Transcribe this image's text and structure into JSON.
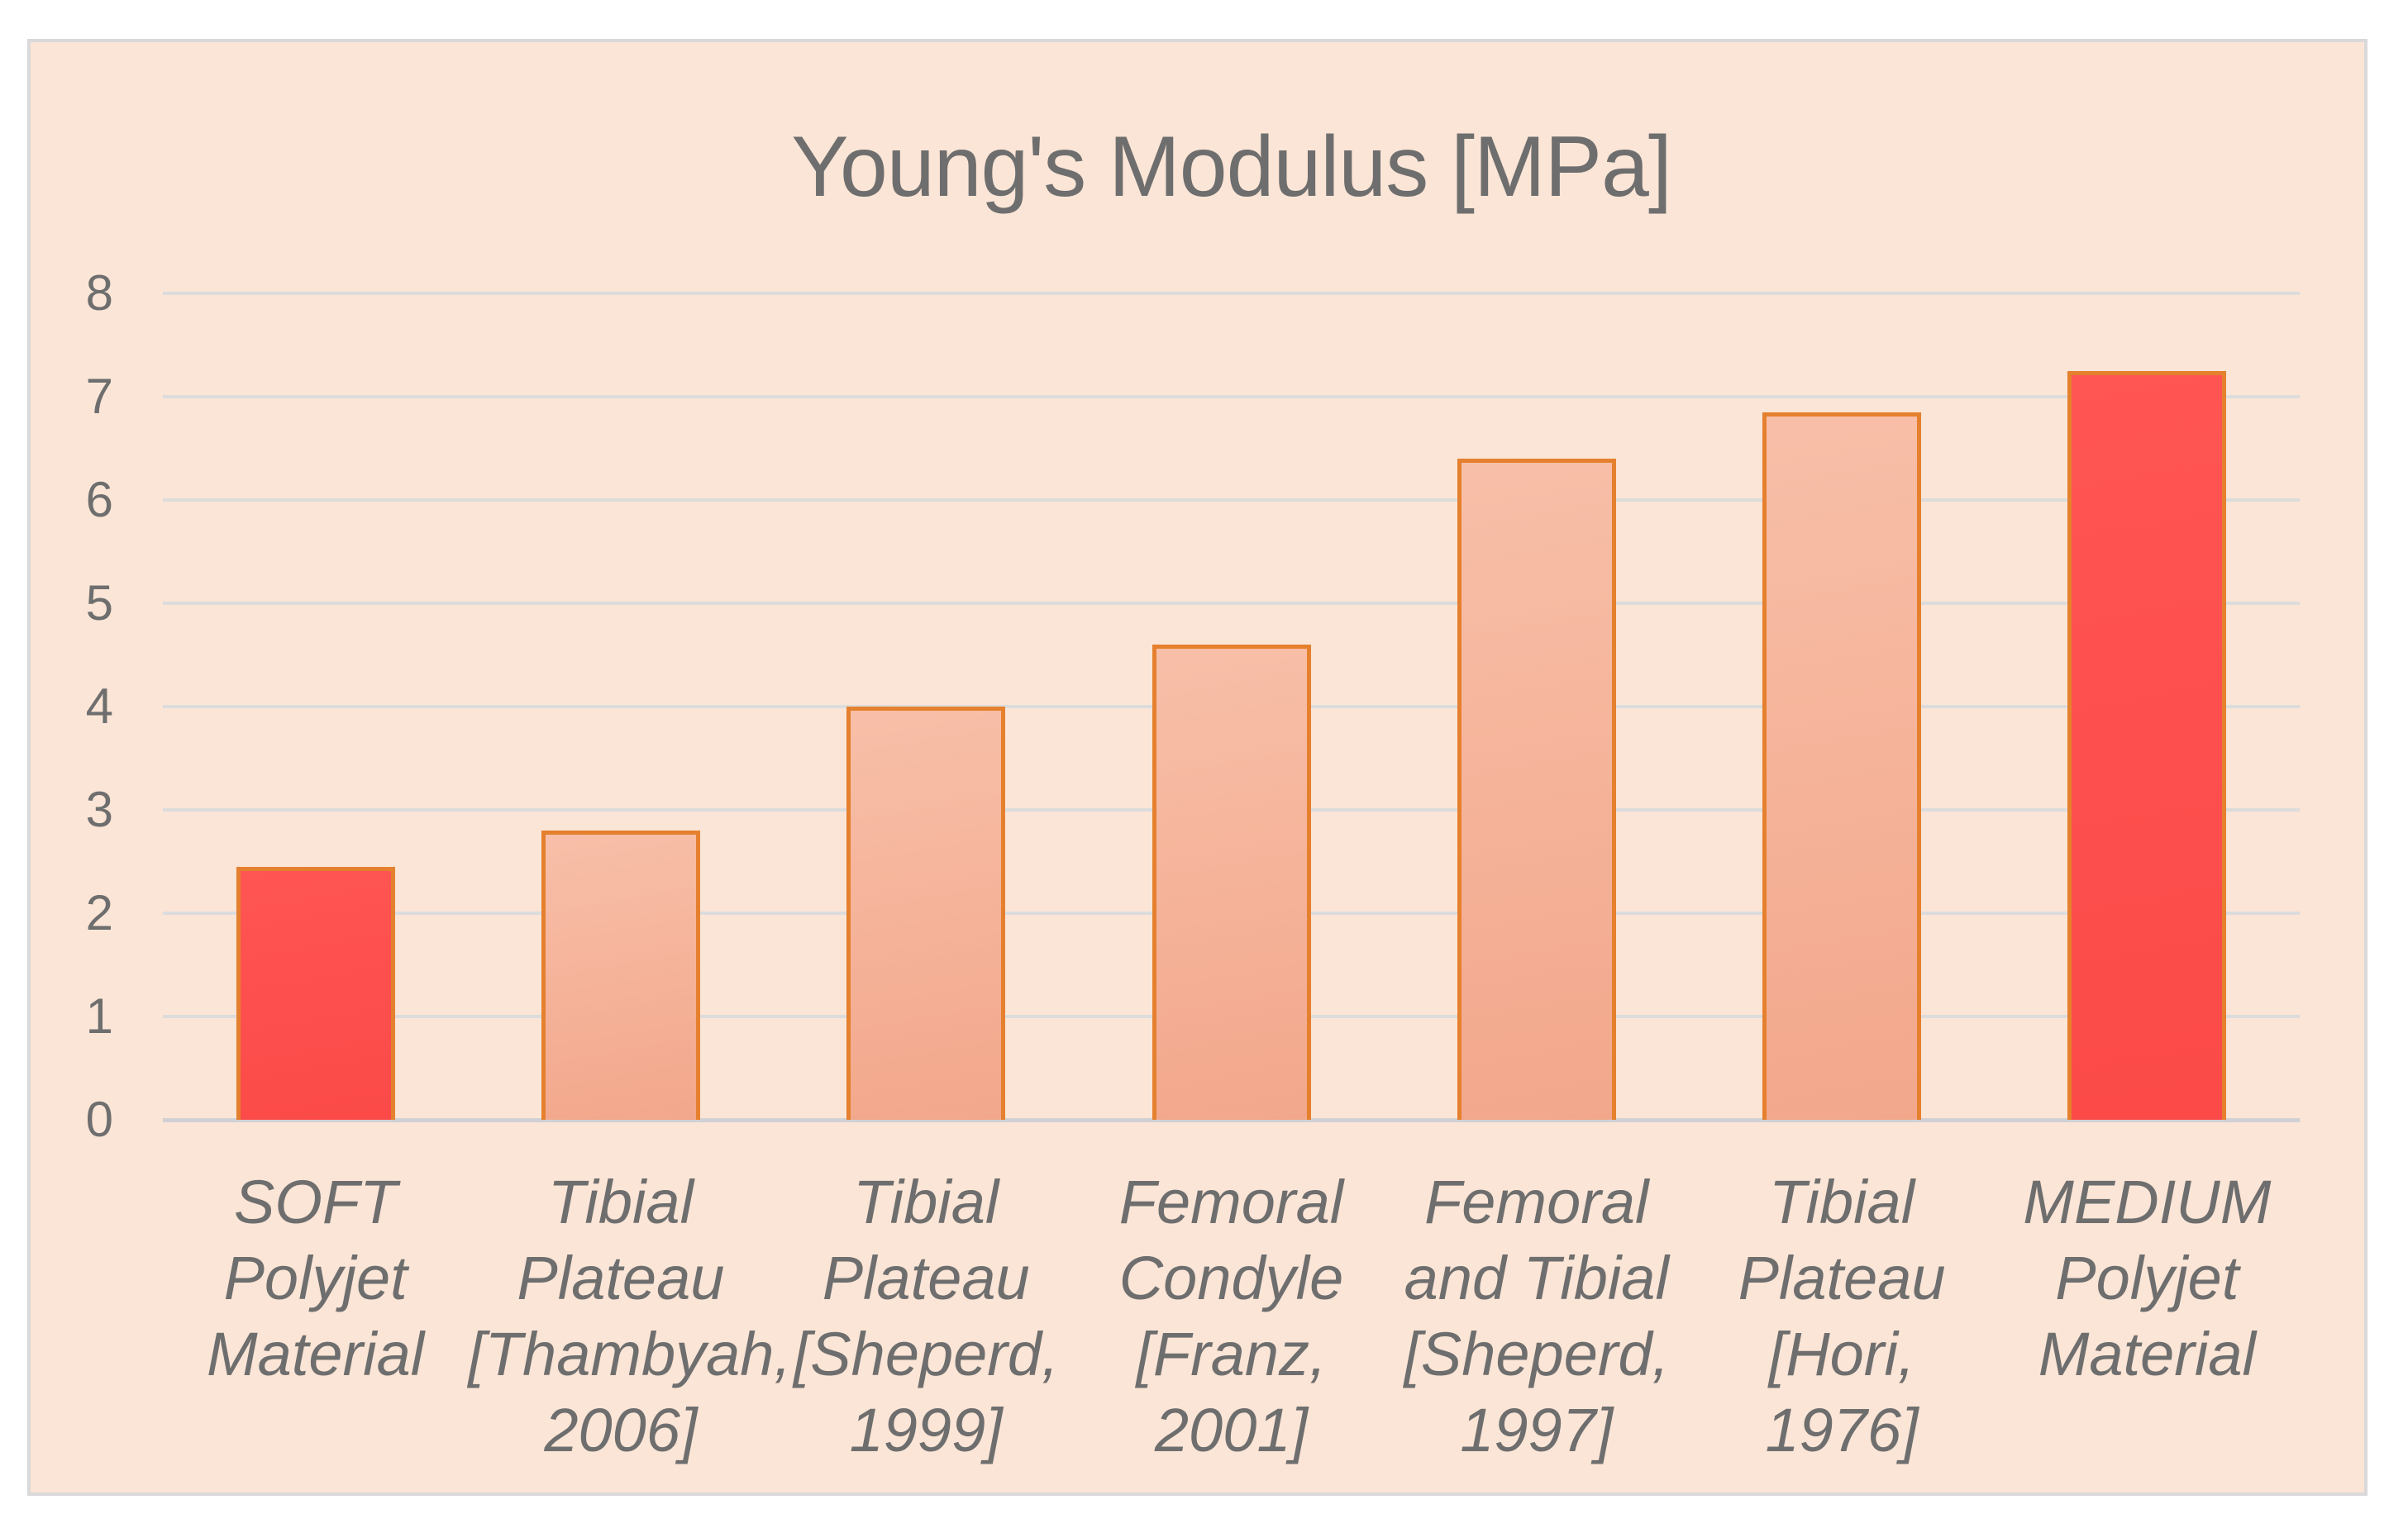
{
  "panel": {
    "background": "#fbe5d6",
    "border_color": "#d9d9d9"
  },
  "colors": {
    "bar_fill_top": "#f8bfa8",
    "bar_fill_bottom": "#f2a78b",
    "bar_highlight_top": "#ff5553",
    "bar_highlight_bottom": "#fb4a48",
    "bar_border": "#e5802e",
    "gridline": "#dcdcdc",
    "axis_line": "#d0d0d4",
    "text": "#6e6e6e"
  },
  "chart_data": {
    "type": "bar",
    "title": "Young's Modulus [MPa]",
    "xlabel": "",
    "ylabel": "",
    "ylim": [
      0,
      8
    ],
    "yticks": [
      0,
      1,
      2,
      3,
      4,
      5,
      6,
      7,
      8
    ],
    "grid": true,
    "legend": "none",
    "categories": [
      "SOFT Polyjet Material",
      "Tibial Plateau [Thambyah, 2006]",
      "Tibial Plateau [Sheperd, 1999]",
      "Femoral Condyle [Franz, 2001]",
      "Femoral and Tibial [Sheperd, 1997]",
      "Tibial Plateau [Hori, 1976]",
      "MEDIUM Polyjet Material"
    ],
    "category_lines": [
      [
        "SOFT",
        "Polyjet",
        "Material"
      ],
      [
        "Tibial",
        "Plateau",
        "[Thambyah,",
        "2006]"
      ],
      [
        "Tibial",
        "Plateau",
        "[Sheperd,",
        "1999]"
      ],
      [
        "Femoral",
        "Condyle",
        "[Franz,",
        "2001]"
      ],
      [
        "Femoral",
        "and Tibial",
        "[Sheperd,",
        "1997]"
      ],
      [
        "Tibial",
        "Plateau",
        "[Hori, 1976]"
      ],
      [
        "MEDIUM",
        "Polyjet",
        "Material"
      ]
    ],
    "values": [
      2.45,
      2.8,
      4.0,
      4.6,
      6.4,
      6.85,
      7.25
    ],
    "highlight_indices": [
      0,
      6
    ],
    "series_name": "Young's Modulus [MPa]"
  }
}
